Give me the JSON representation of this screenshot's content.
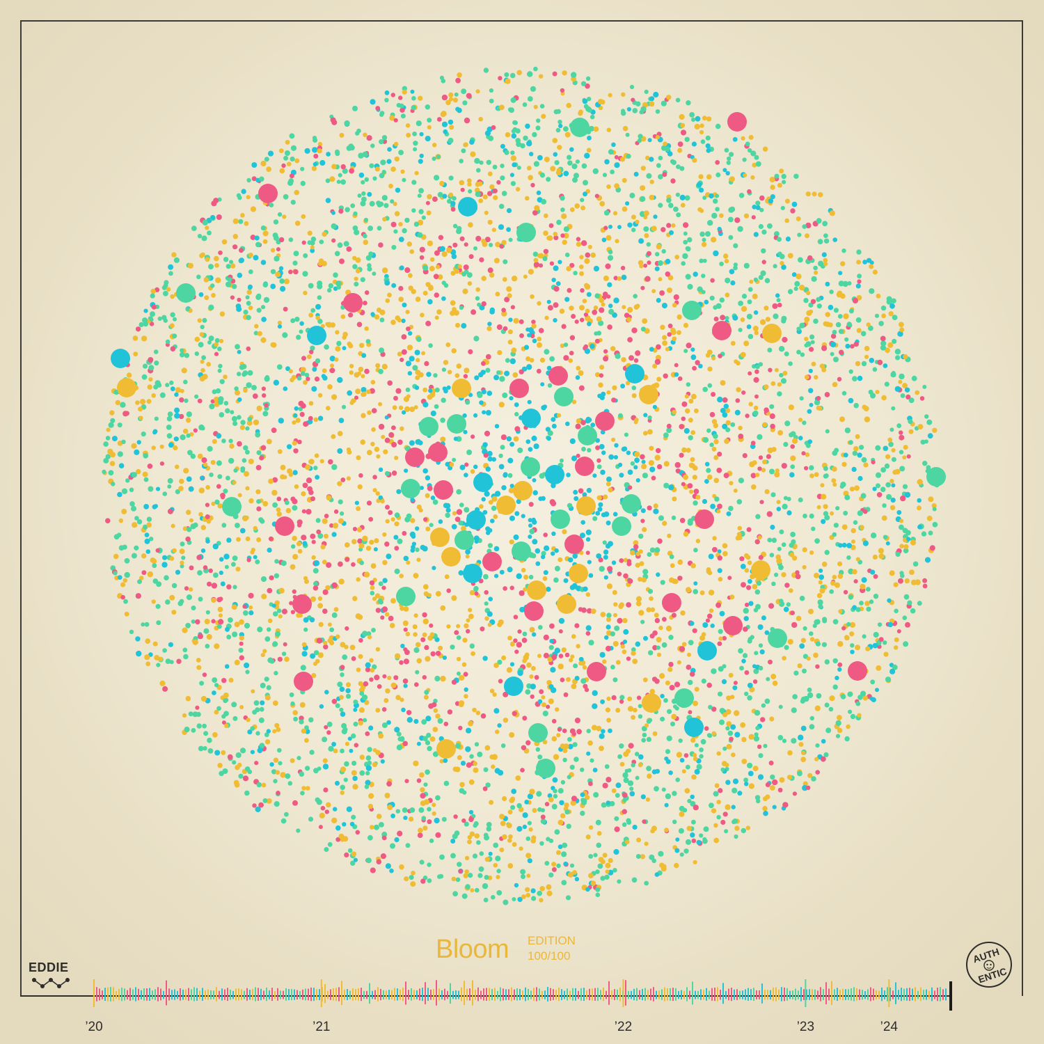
{
  "title": "Bloom",
  "edition_label": "EDITION",
  "edition_number": "100/100",
  "brand": "EDDIE",
  "badge_text": [
    "AUTH",
    "ENTIC"
  ],
  "timeline_years": [
    {
      "label": "’20",
      "pos": 0.0
    },
    {
      "label": "’21",
      "pos": 0.2668
    },
    {
      "label": "’22",
      "pos": 0.6208
    },
    {
      "label": "’23",
      "pos": 0.8346
    },
    {
      "label": "’24",
      "pos": 0.9325
    }
  ],
  "colors": {
    "yellow": "#efbc34",
    "green": "#4dd6a2",
    "cyan": "#20c3d8",
    "pink": "#ee5a84",
    "ink": "#2f2d2a",
    "title": "#e9b73a"
  }
}
